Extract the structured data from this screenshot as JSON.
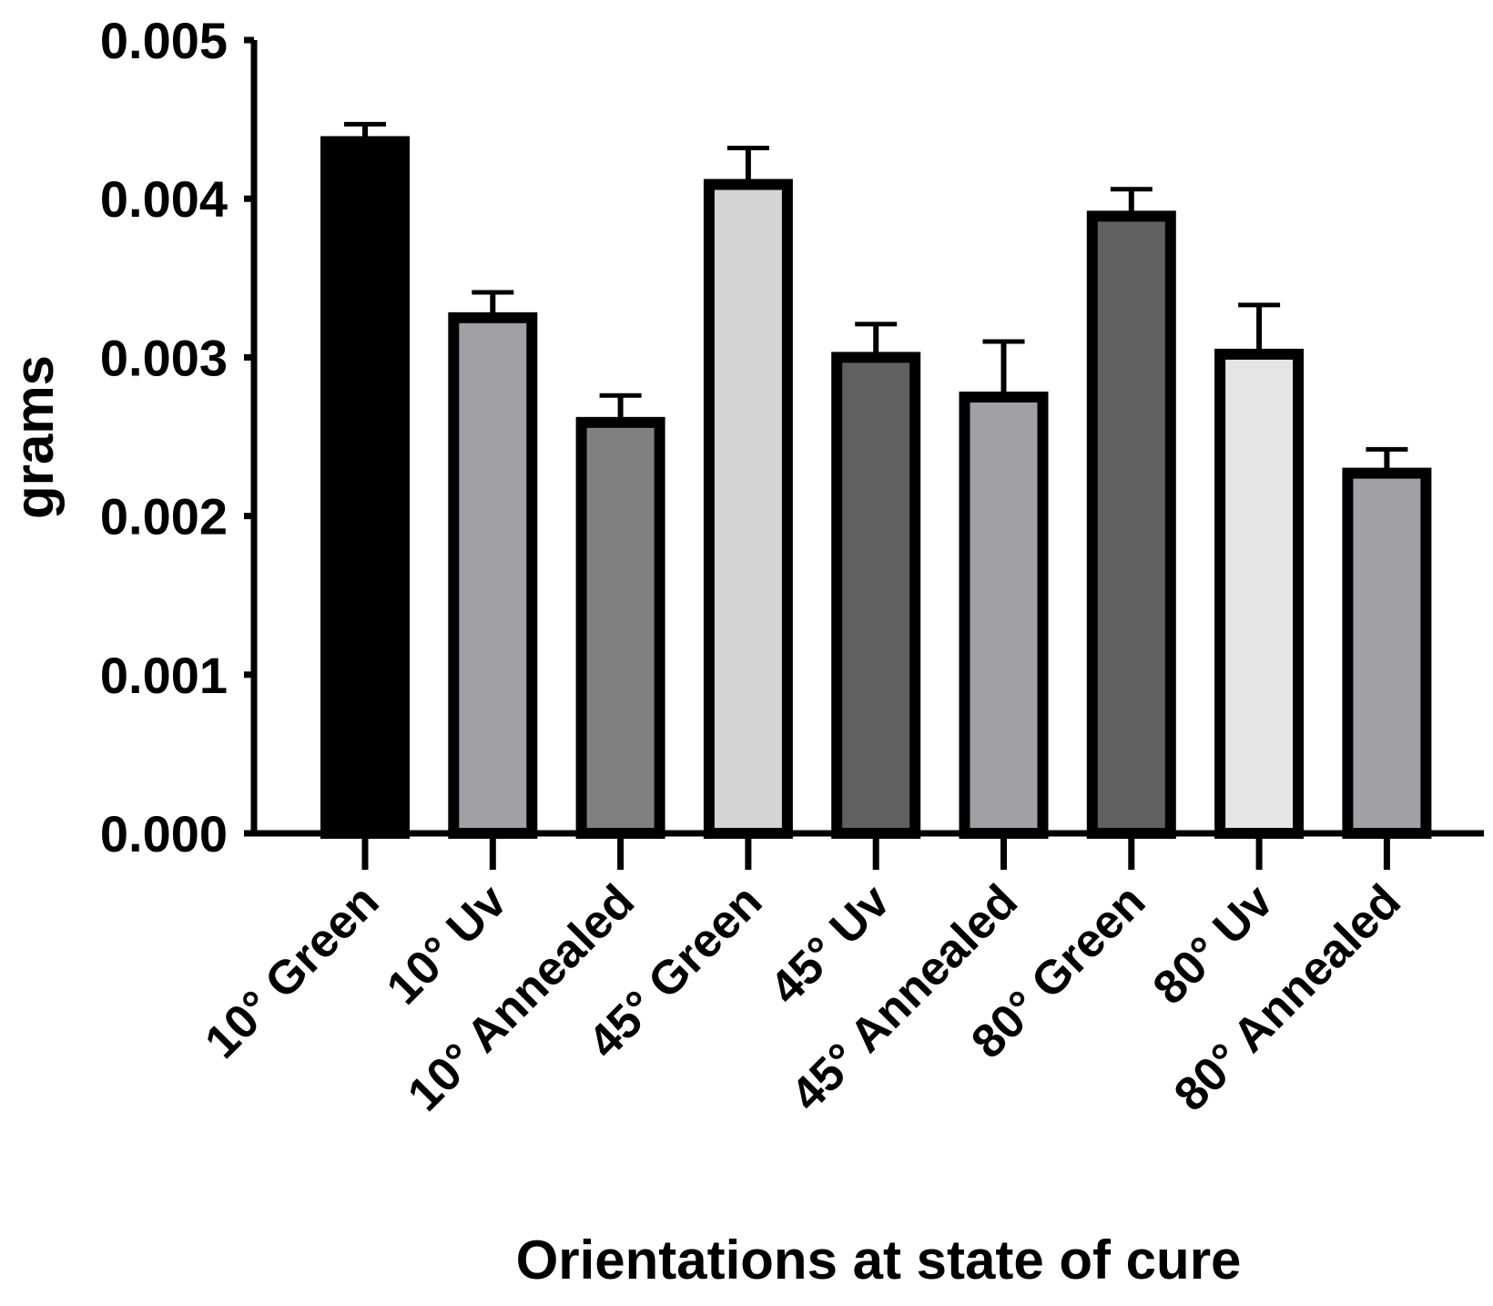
{
  "chart_data": {
    "type": "bar",
    "title": "",
    "xlabel": "Orientations at state of cure",
    "ylabel": "grams",
    "ylim": [
      0,
      0.005
    ],
    "yticks": [
      "0.000",
      "0.001",
      "0.002",
      "0.003",
      "0.004",
      "0.005"
    ],
    "ytick_values": [
      0,
      0.001,
      0.002,
      0.003,
      0.004,
      0.005
    ],
    "categories": [
      "10° Green",
      "10° Uv",
      "10° Annealed",
      "45° Green",
      "45° Uv",
      "45° Annealed",
      "80° Green",
      "80° Uv",
      "80° Annealed"
    ],
    "values": [
      0.00436,
      0.00325,
      0.00259,
      0.00409,
      0.003,
      0.00275,
      0.00389,
      0.00302,
      0.00227
    ],
    "error_upper": [
      0.00011,
      0.00016,
      0.00017,
      0.00023,
      0.00021,
      0.00035,
      0.00017,
      0.00031,
      0.00015
    ],
    "colors": [
      "#000000",
      "#a0a0a5",
      "#808080",
      "#d4d4d4",
      "#606060",
      "#a0a0a5",
      "#606060",
      "#e5e5e5",
      "#a0a0a5"
    ],
    "grid": false,
    "legend": "none"
  }
}
